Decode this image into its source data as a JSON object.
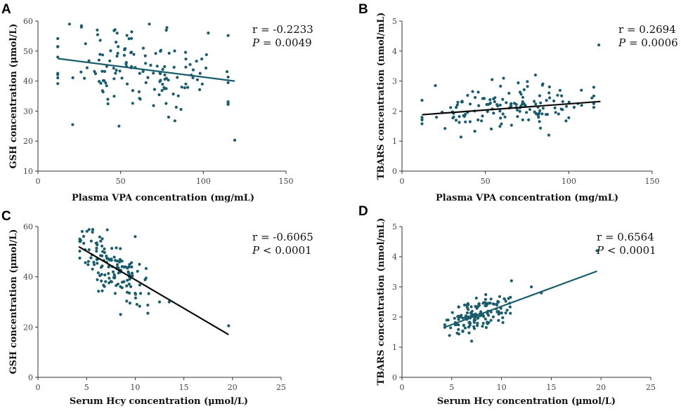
{
  "figure": {
    "colors": {
      "point": "#1a5c6b",
      "fit_line_dark": "#0b0b0b",
      "fit_line_teal": "#1a5c6b"
    }
  },
  "chart_data": [
    {
      "panel": "A",
      "type": "scatter",
      "xlabel": "Plasma VPA concentration (mg/mL)",
      "ylabel": "GSH concentration (μmol/L)",
      "xlim": [
        0,
        150
      ],
      "ylim": [
        10,
        60
      ],
      "xticks": [
        0,
        50,
        100,
        150
      ],
      "yticks": [
        10,
        20,
        30,
        40,
        50,
        60
      ],
      "stats": {
        "r": "r = -0.2233",
        "p_label": "P",
        "p_rest": " = 0.0049"
      },
      "fit": {
        "x": [
          12,
          119
        ],
        "y": [
          47.5,
          40
        ],
        "color": "#1a5c6b"
      },
      "points_seed": 11,
      "n_points": 145,
      "gen": {
        "x_mean": 62,
        "x_sd": 25,
        "x_min": 12,
        "x_max": 115,
        "noise": 7.5
      },
      "extra_points": [
        [
          119,
          20.3
        ],
        [
          21,
          25.5
        ],
        [
          49,
          25
        ],
        [
          79,
          28
        ],
        [
          46,
          56.8
        ],
        [
          103,
          56
        ],
        [
          12,
          51.5
        ]
      ]
    },
    {
      "panel": "B",
      "type": "scatter",
      "xlabel": "Plasma VPA concentration (mg/mL)",
      "ylabel": "TBARS concentration (nmol/mL)",
      "xlim": [
        0,
        150
      ],
      "ylim": [
        0,
        5
      ],
      "xticks": [
        0,
        50,
        100,
        150
      ],
      "yticks": [
        0,
        1,
        2,
        3,
        4,
        5
      ],
      "stats": {
        "r": "r = 0.2694",
        "p_label": "P",
        "p_rest": " = 0.0006"
      },
      "fit": {
        "x": [
          12,
          119
        ],
        "y": [
          1.88,
          2.32
        ],
        "color": "#0b0b0b"
      },
      "points_seed": 23,
      "n_points": 145,
      "gen": {
        "x_mean": 62,
        "x_sd": 25,
        "x_min": 12,
        "x_max": 115,
        "noise": 0.33
      },
      "extra_points": [
        [
          118,
          4.2
        ],
        [
          80,
          3.2
        ],
        [
          88,
          1.2
        ],
        [
          54,
          3.05
        ],
        [
          20,
          2.85
        ]
      ]
    },
    {
      "panel": "C",
      "type": "scatter",
      "xlabel": "Serum Hcy concentration (μmol/L)",
      "ylabel": "GSH concentration (μmol/L)",
      "xlim": [
        0,
        25
      ],
      "ylim": [
        0,
        60
      ],
      "xticks": [
        0,
        5,
        10,
        15,
        20,
        25
      ],
      "yticks": [
        0,
        20,
        40,
        60
      ],
      "stats": {
        "r": "r = -0.6065",
        "p_label": "P",
        "p_rest": " < 0.0001"
      },
      "fit": {
        "x": [
          4.2,
          19.6
        ],
        "y": [
          52,
          17
        ],
        "color": "#0b0b0b"
      },
      "points_seed": 37,
      "n_points": 140,
      "gen": {
        "x_mean": 7.5,
        "x_sd": 1.7,
        "x_min": 4.3,
        "x_max": 13.5,
        "noise": 5.5
      },
      "extra_points": [
        [
          19.6,
          20.5
        ],
        [
          12.5,
          30
        ],
        [
          13.5,
          30
        ],
        [
          8.5,
          25
        ],
        [
          11.3,
          25.5
        ],
        [
          10,
          56
        ],
        [
          4.4,
          54.5
        ]
      ]
    },
    {
      "panel": "D",
      "type": "scatter",
      "xlabel": "Serum Hcy concentration (μmol/L)",
      "ylabel": "TBARS concentration (nmol/mL)",
      "xlim": [
        0,
        25
      ],
      "ylim": [
        0,
        5
      ],
      "xticks": [
        0,
        5,
        10,
        15,
        20,
        25
      ],
      "yticks": [
        0,
        1,
        2,
        3,
        4,
        5
      ],
      "stats": {
        "r": "r = 0.6564",
        "p_label": "P",
        "p_rest": " < 0.0001"
      },
      "fit": {
        "x": [
          4.2,
          19.6
        ],
        "y": [
          1.65,
          3.52
        ],
        "color": "#1a5c6b"
      },
      "points_seed": 51,
      "n_points": 140,
      "gen": {
        "x_mean": 7.5,
        "x_sd": 1.7,
        "x_min": 4.3,
        "x_max": 13.5,
        "noise": 0.27
      },
      "extra_points": [
        [
          19.6,
          4.2
        ],
        [
          14,
          2.8
        ],
        [
          13,
          3.0
        ],
        [
          11,
          3.2
        ],
        [
          7,
          1.2
        ],
        [
          4.5,
          1.9
        ]
      ]
    }
  ]
}
